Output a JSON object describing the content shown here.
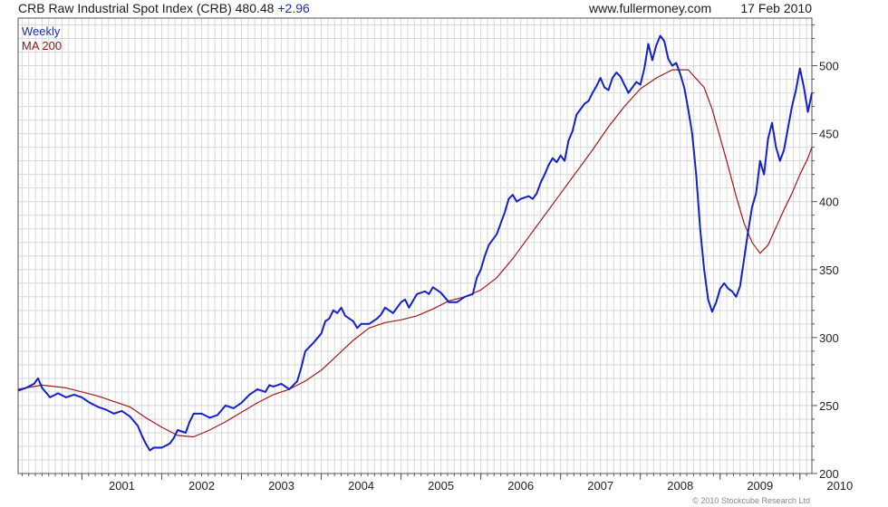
{
  "header": {
    "title": "CRB Raw Industrial Spot Index (CRB) 480.48",
    "change": "+2.96",
    "site": "www.fullermoney.com",
    "date": "17 Feb 2010"
  },
  "legend": {
    "weekly": "Weekly",
    "ma": "MA 200"
  },
  "copyright": "© 2010 Stockcube Research Ltd",
  "colors": {
    "weekly": "#1420c8",
    "ma": "#a01818",
    "grid": "#d8d8d8",
    "axis": "#555555"
  },
  "chart_data": {
    "type": "line",
    "title": "CRB Raw Industrial Spot Index (CRB) 480.48 +2.96",
    "xlabel": "",
    "ylabel": "",
    "xlim": [
      2000.2,
      2010.15
    ],
    "ylim": [
      200,
      535
    ],
    "yticks": [
      200,
      250,
      300,
      350,
      400,
      450,
      500
    ],
    "xticks": [
      "2001",
      "2002",
      "2003",
      "2004",
      "2005",
      "2006",
      "2007",
      "2008",
      "2009",
      "2010"
    ],
    "grid": true,
    "legend_position": "top-left",
    "series": [
      {
        "name": "Weekly",
        "points": [
          [
            2000.2,
            261
          ],
          [
            2000.3,
            263
          ],
          [
            2000.4,
            266
          ],
          [
            2000.45,
            270
          ],
          [
            2000.5,
            263
          ],
          [
            2000.6,
            256
          ],
          [
            2000.7,
            259
          ],
          [
            2000.8,
            256
          ],
          [
            2000.9,
            258
          ],
          [
            2001.0,
            256
          ],
          [
            2001.1,
            252
          ],
          [
            2001.2,
            249
          ],
          [
            2001.3,
            247
          ],
          [
            2001.4,
            244
          ],
          [
            2001.5,
            246
          ],
          [
            2001.6,
            242
          ],
          [
            2001.7,
            235
          ],
          [
            2001.75,
            228
          ],
          [
            2001.8,
            222
          ],
          [
            2001.85,
            217
          ],
          [
            2001.9,
            219
          ],
          [
            2002.0,
            219
          ],
          [
            2002.1,
            222
          ],
          [
            2002.15,
            226
          ],
          [
            2002.2,
            232
          ],
          [
            2002.3,
            230
          ],
          [
            2002.35,
            238
          ],
          [
            2002.4,
            244
          ],
          [
            2002.5,
            244
          ],
          [
            2002.6,
            241
          ],
          [
            2002.7,
            243
          ],
          [
            2002.8,
            250
          ],
          [
            2002.9,
            248
          ],
          [
            2003.0,
            252
          ],
          [
            2003.1,
            258
          ],
          [
            2003.2,
            262
          ],
          [
            2003.3,
            260
          ],
          [
            2003.35,
            265
          ],
          [
            2003.4,
            264
          ],
          [
            2003.5,
            266
          ],
          [
            2003.6,
            262
          ],
          [
            2003.7,
            268
          ],
          [
            2003.75,
            278
          ],
          [
            2003.8,
            290
          ],
          [
            2003.9,
            296
          ],
          [
            2004.0,
            303
          ],
          [
            2004.05,
            312
          ],
          [
            2004.1,
            314
          ],
          [
            2004.15,
            320
          ],
          [
            2004.2,
            318
          ],
          [
            2004.25,
            322
          ],
          [
            2004.3,
            316
          ],
          [
            2004.4,
            312
          ],
          [
            2004.45,
            307
          ],
          [
            2004.5,
            310
          ],
          [
            2004.6,
            310
          ],
          [
            2004.7,
            314
          ],
          [
            2004.75,
            317
          ],
          [
            2004.8,
            322
          ],
          [
            2004.9,
            318
          ],
          [
            2005.0,
            326
          ],
          [
            2005.05,
            328
          ],
          [
            2005.1,
            322
          ],
          [
            2005.2,
            332
          ],
          [
            2005.3,
            334
          ],
          [
            2005.35,
            332
          ],
          [
            2005.4,
            337
          ],
          [
            2005.5,
            333
          ],
          [
            2005.6,
            326
          ],
          [
            2005.7,
            326
          ],
          [
            2005.8,
            330
          ],
          [
            2005.85,
            331
          ],
          [
            2005.9,
            332
          ],
          [
            2005.95,
            344
          ],
          [
            2006.0,
            350
          ],
          [
            2006.05,
            360
          ],
          [
            2006.1,
            368
          ],
          [
            2006.15,
            372
          ],
          [
            2006.2,
            376
          ],
          [
            2006.25,
            384
          ],
          [
            2006.3,
            392
          ],
          [
            2006.35,
            402
          ],
          [
            2006.4,
            405
          ],
          [
            2006.45,
            400
          ],
          [
            2006.5,
            402
          ],
          [
            2006.6,
            404
          ],
          [
            2006.65,
            402
          ],
          [
            2006.7,
            406
          ],
          [
            2006.75,
            414
          ],
          [
            2006.8,
            420
          ],
          [
            2006.85,
            427
          ],
          [
            2006.9,
            432
          ],
          [
            2006.95,
            429
          ],
          [
            2007.0,
            434
          ],
          [
            2007.05,
            430
          ],
          [
            2007.1,
            445
          ],
          [
            2007.15,
            452
          ],
          [
            2007.2,
            464
          ],
          [
            2007.25,
            468
          ],
          [
            2007.3,
            472
          ],
          [
            2007.35,
            474
          ],
          [
            2007.4,
            480
          ],
          [
            2007.45,
            485
          ],
          [
            2007.5,
            491
          ],
          [
            2007.55,
            484
          ],
          [
            2007.6,
            482
          ],
          [
            2007.65,
            491
          ],
          [
            2007.7,
            495
          ],
          [
            2007.75,
            492
          ],
          [
            2007.8,
            486
          ],
          [
            2007.85,
            480
          ],
          [
            2007.9,
            484
          ],
          [
            2007.95,
            488
          ],
          [
            2008.0,
            486
          ],
          [
            2008.05,
            498
          ],
          [
            2008.1,
            516
          ],
          [
            2008.15,
            504
          ],
          [
            2008.2,
            515
          ],
          [
            2008.25,
            522
          ],
          [
            2008.3,
            518
          ],
          [
            2008.35,
            505
          ],
          [
            2008.4,
            500
          ],
          [
            2008.45,
            502
          ],
          [
            2008.5,
            494
          ],
          [
            2008.55,
            484
          ],
          [
            2008.6,
            468
          ],
          [
            2008.65,
            450
          ],
          [
            2008.7,
            420
          ],
          [
            2008.75,
            380
          ],
          [
            2008.8,
            350
          ],
          [
            2008.85,
            328
          ],
          [
            2008.9,
            319
          ],
          [
            2008.95,
            326
          ],
          [
            2009.0,
            336
          ],
          [
            2009.05,
            340
          ],
          [
            2009.1,
            336
          ],
          [
            2009.15,
            334
          ],
          [
            2009.2,
            330
          ],
          [
            2009.25,
            338
          ],
          [
            2009.3,
            358
          ],
          [
            2009.35,
            378
          ],
          [
            2009.4,
            396
          ],
          [
            2009.45,
            406
          ],
          [
            2009.5,
            430
          ],
          [
            2009.55,
            420
          ],
          [
            2009.6,
            446
          ],
          [
            2009.65,
            458
          ],
          [
            2009.7,
            440
          ],
          [
            2009.75,
            430
          ],
          [
            2009.8,
            438
          ],
          [
            2009.85,
            454
          ],
          [
            2009.9,
            470
          ],
          [
            2009.95,
            482
          ],
          [
            2010.0,
            498
          ],
          [
            2010.05,
            484
          ],
          [
            2010.1,
            466
          ],
          [
            2010.15,
            480
          ]
        ]
      },
      {
        "name": "MA 200",
        "points": [
          [
            2000.2,
            262
          ],
          [
            2000.5,
            265
          ],
          [
            2000.8,
            263
          ],
          [
            2001.0,
            260
          ],
          [
            2001.2,
            257
          ],
          [
            2001.4,
            253
          ],
          [
            2001.6,
            249
          ],
          [
            2001.8,
            241
          ],
          [
            2002.0,
            234
          ],
          [
            2002.2,
            228
          ],
          [
            2002.4,
            227
          ],
          [
            2002.6,
            232
          ],
          [
            2002.8,
            238
          ],
          [
            2003.0,
            245
          ],
          [
            2003.2,
            252
          ],
          [
            2003.4,
            258
          ],
          [
            2003.6,
            262
          ],
          [
            2003.8,
            268
          ],
          [
            2004.0,
            276
          ],
          [
            2004.2,
            287
          ],
          [
            2004.4,
            298
          ],
          [
            2004.6,
            307
          ],
          [
            2004.8,
            311
          ],
          [
            2005.0,
            313
          ],
          [
            2005.2,
            316
          ],
          [
            2005.4,
            321
          ],
          [
            2005.6,
            327
          ],
          [
            2005.8,
            330
          ],
          [
            2006.0,
            335
          ],
          [
            2006.2,
            344
          ],
          [
            2006.4,
            358
          ],
          [
            2006.6,
            374
          ],
          [
            2006.8,
            390
          ],
          [
            2007.0,
            406
          ],
          [
            2007.2,
            422
          ],
          [
            2007.4,
            438
          ],
          [
            2007.6,
            455
          ],
          [
            2007.8,
            470
          ],
          [
            2008.0,
            483
          ],
          [
            2008.2,
            491
          ],
          [
            2008.4,
            497
          ],
          [
            2008.6,
            497
          ],
          [
            2008.8,
            484
          ],
          [
            2008.9,
            468
          ],
          [
            2009.0,
            447
          ],
          [
            2009.1,
            426
          ],
          [
            2009.2,
            404
          ],
          [
            2009.3,
            384
          ],
          [
            2009.4,
            370
          ],
          [
            2009.5,
            362
          ],
          [
            2009.6,
            368
          ],
          [
            2009.7,
            381
          ],
          [
            2009.8,
            394
          ],
          [
            2009.9,
            406
          ],
          [
            2010.0,
            420
          ],
          [
            2010.1,
            432
          ],
          [
            2010.15,
            440
          ]
        ]
      }
    ]
  }
}
